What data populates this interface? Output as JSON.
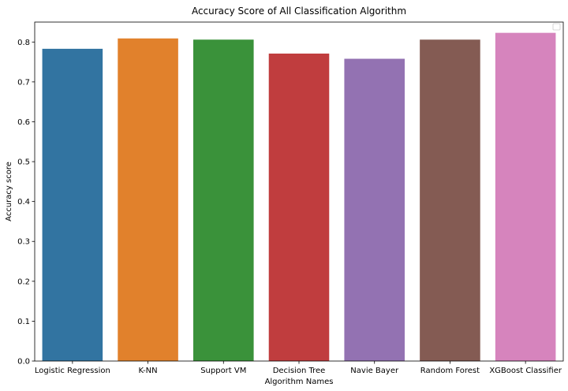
{
  "chart_data": {
    "type": "bar",
    "title": "Accuracy Score of All Classification Algorithm",
    "xlabel": "Algorithm Names",
    "ylabel": "Accuracy score",
    "categories": [
      "Logistic Regression",
      "K-NN",
      "Support VM",
      "Decision Tree",
      "Navie Bayer",
      "Random Forest",
      "XGBoost Classifier"
    ],
    "values": [
      0.783,
      0.809,
      0.806,
      0.771,
      0.758,
      0.806,
      0.823
    ],
    "colors": [
      "#3274a1",
      "#e1812c",
      "#3a923a",
      "#c03d3e",
      "#9372b2",
      "#845b53",
      "#d684bd"
    ],
    "ylim": [
      0,
      0.85
    ],
    "yticks": [
      "0.0",
      "0.1",
      "0.2",
      "0.3",
      "0.4",
      "0.5",
      "0.6",
      "0.7",
      "0.8"
    ],
    "grid": false,
    "legend": {
      "placement": "top-right",
      "entries": []
    }
  }
}
